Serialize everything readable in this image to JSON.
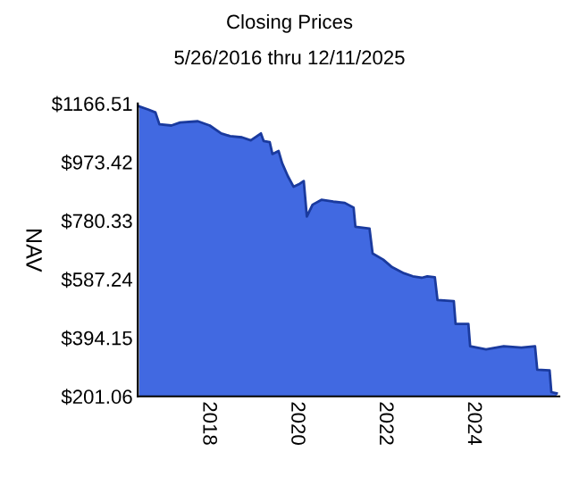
{
  "chart_data": {
    "type": "area",
    "title": "Closing Prices",
    "subtitle": "5/26/2016 thru 12/11/2025",
    "ylabel": "NAV",
    "x": [
      2016.43,
      2016.63,
      2016.8,
      2016.89,
      2017.16,
      2017.36,
      2017.76,
      2018.03,
      2018.29,
      2018.49,
      2018.76,
      2018.96,
      2019.19,
      2019.25,
      2019.39,
      2019.45,
      2019.59,
      2019.67,
      2019.8,
      2019.93,
      2020.07,
      2020.16,
      2020.23,
      2020.36,
      2020.56,
      2020.83,
      2021.09,
      2021.29,
      2021.33,
      2021.65,
      2021.72,
      2021.96,
      2022.16,
      2022.43,
      2022.63,
      2022.83,
      2022.96,
      2023.13,
      2023.19,
      2023.56,
      2023.6,
      2023.89,
      2023.93,
      2024.29,
      2024.69,
      2025.09,
      2025.4,
      2025.45,
      2025.73,
      2025.77,
      2025.89
    ],
    "series": [
      {
        "color": "#4169e1",
        "values": [
          1157,
          1147,
          1137,
          1098,
          1094,
          1104,
          1108,
          1094,
          1068,
          1059,
          1055,
          1045,
          1068,
          1043,
          1039,
          1000,
          1010,
          970,
          927,
          892,
          902,
          911,
          794,
          833,
          849,
          843,
          839,
          823,
          760,
          754,
          672,
          652,
          627,
          607,
          597,
          592,
          597,
          594,
          519,
          515,
          440,
          440,
          366,
          356,
          366,
          362,
          366,
          289,
          287,
          215,
          211
        ]
      }
    ],
    "xlim": [
      2016.4,
      2025.95
    ],
    "xticks": [
      2018,
      2020,
      2022,
      2024
    ],
    "ylim": [
      201.06,
      1166.51
    ],
    "yticks": [
      {
        "value": 201.06,
        "label": "$201.06"
      },
      {
        "value": 394.15,
        "label": "$394.15"
      },
      {
        "value": 587.24,
        "label": "$587.24"
      },
      {
        "value": 780.33,
        "label": "$780.33"
      },
      {
        "value": 973.42,
        "label": "$973.42"
      },
      {
        "value": 1166.51,
        "label": "$1166.51"
      }
    ],
    "grid": false,
    "legend": false
  }
}
